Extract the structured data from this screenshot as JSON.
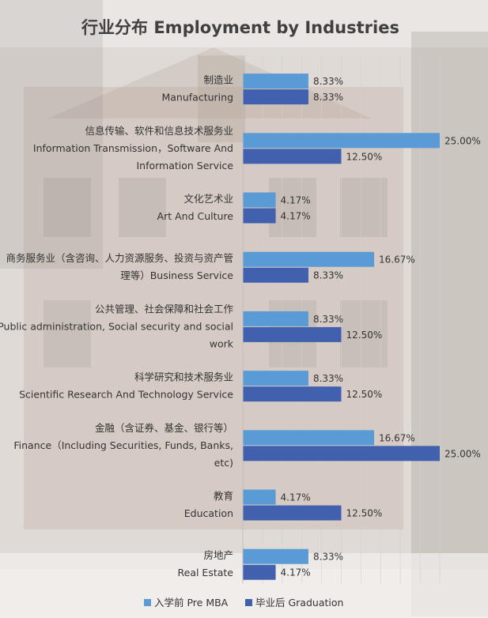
{
  "chart_data": {
    "type": "bar",
    "orientation": "horizontal",
    "title": "行业分布  Employment by Industries",
    "categories": [
      [
        "制造业",
        "Manufacturing"
      ],
      [
        "信息传输、软件和信息技术服务业",
        "Information Transmission，Software And",
        "Information Service"
      ],
      [
        "文化艺术业",
        "Art And Culture"
      ],
      [
        "商务服务业（含咨询、人力资源服务、投资与资产管",
        "理等）Business Service"
      ],
      [
        "公共管理、社会保障和社会工作",
        "Public administration, Social security and social",
        "work"
      ],
      [
        "科学研究和技术服务业",
        "Scientific Research And Technology Service"
      ],
      [
        "金融（含证券、基金、银行等）",
        "Finance（Including Securities, Funds, Banks,",
        "etc)"
      ],
      [
        "教育",
        "Education"
      ],
      [
        "房地产",
        "Real Estate"
      ]
    ],
    "series": [
      {
        "name": "入学前 Pre MBA",
        "color": "#5b9bd5",
        "values": [
          8.33,
          25.0,
          4.17,
          16.67,
          8.33,
          8.33,
          16.67,
          4.17,
          8.33
        ],
        "labels": [
          "8.33%",
          "25.00%",
          "4.17%",
          "16.67%",
          "8.33%",
          "8.33%",
          "16.67%",
          "4.17%",
          "8.33%"
        ]
      },
      {
        "name": "毕业后 Graduation",
        "color": "#4160ad",
        "values": [
          8.33,
          12.5,
          4.17,
          8.33,
          12.5,
          12.5,
          25.0,
          12.5,
          4.17
        ],
        "labels": [
          "8.33%",
          "12.50%",
          "4.17%",
          "8.33%",
          "12.50%",
          "12.50%",
          "25.00%",
          "12.50%",
          "4.17%"
        ]
      }
    ],
    "xlim": [
      0,
      25
    ],
    "grid": true,
    "legend": "bottom"
  }
}
